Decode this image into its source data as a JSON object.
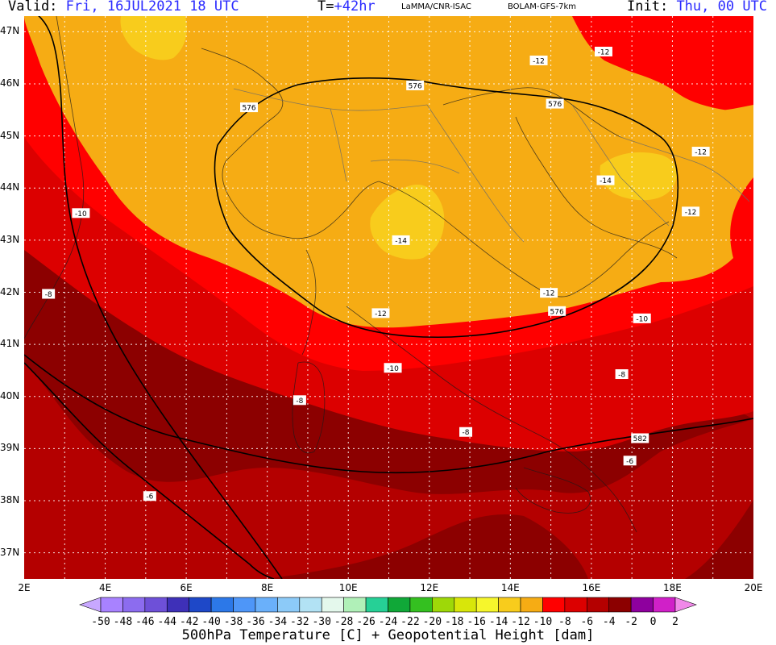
{
  "header": {
    "valid_key": "Valid:",
    "valid_value": "Fri, 16JUL2021   18 UTC",
    "t_key": "T=",
    "t_value": "+42hr",
    "source": "LaMMA/CNR-ISAC",
    "model": "BOLAM-GFS-7km",
    "init_key": "Init:",
    "init_value": "Thu, 00 UTC"
  },
  "map": {
    "lat_labels": [
      "47N",
      "46N",
      "45N",
      "44N",
      "43N",
      "42N",
      "41N",
      "40N",
      "39N",
      "38N",
      "37N"
    ],
    "lon_labels": [
      "2E",
      "4E",
      "6E",
      "8E",
      "10E",
      "12E",
      "14E",
      "16E",
      "18E",
      "20E"
    ],
    "extent": {
      "lon_min": 2,
      "lon_max": 20,
      "lat_min": 36.5,
      "lat_max": 47.3
    },
    "temperature_labels": [
      {
        "text": "-10",
        "lon": 3.4,
        "lat": 43.52
      },
      {
        "text": "-8",
        "lon": 2.6,
        "lat": 41.97
      },
      {
        "text": "-14",
        "lon": 11.3,
        "lat": 43.0
      },
      {
        "text": "-12",
        "lon": 10.8,
        "lat": 41.6
      },
      {
        "text": "-10",
        "lon": 11.1,
        "lat": 40.55
      },
      {
        "text": "-8",
        "lon": 8.8,
        "lat": 39.93
      },
      {
        "text": "-8",
        "lon": 12.9,
        "lat": 39.32
      },
      {
        "text": "-6",
        "lon": 5.1,
        "lat": 38.09
      },
      {
        "text": "-12",
        "lon": 14.95,
        "lat": 41.99
      },
      {
        "text": "-10",
        "lon": 17.25,
        "lat": 41.5
      },
      {
        "text": "-8",
        "lon": 16.75,
        "lat": 40.43
      },
      {
        "text": "-6",
        "lon": 16.95,
        "lat": 38.77
      },
      {
        "text": "-14",
        "lon": 16.35,
        "lat": 44.15
      },
      {
        "text": "-12",
        "lon": 18.7,
        "lat": 44.7
      },
      {
        "text": "-12",
        "lon": 18.45,
        "lat": 43.55
      },
      {
        "text": "-12",
        "lon": 14.7,
        "lat": 46.45
      },
      {
        "text": "-12",
        "lon": 16.3,
        "lat": 46.62
      }
    ],
    "height_labels": [
      {
        "text": "576",
        "lon": 7.55,
        "lat": 45.55
      },
      {
        "text": "576",
        "lon": 11.65,
        "lat": 45.97
      },
      {
        "text": "576",
        "lon": 15.1,
        "lat": 45.62
      },
      {
        "text": "576",
        "lon": 15.15,
        "lat": 41.64
      },
      {
        "text": "582",
        "lon": 17.2,
        "lat": 39.2
      }
    ]
  },
  "colorbar": {
    "labels": [
      "-50",
      "-48",
      "-46",
      "-44",
      "-42",
      "-40",
      "-38",
      "-36",
      "-34",
      "-32",
      "-30",
      "-28",
      "-26",
      "-24",
      "-22",
      "-20",
      "-18",
      "-16",
      "-14",
      "-12",
      "-10",
      "-8",
      "-6",
      "-4",
      "-2",
      "0",
      "2"
    ],
    "colors": [
      "#c8a8ff",
      "#a882ff",
      "#8c6cef",
      "#6e50d8",
      "#3e30b8",
      "#1e48c8",
      "#2c78e8",
      "#4e96f8",
      "#6ab0fa",
      "#8ccaf8",
      "#b2e2f4",
      "#e4f8ec",
      "#b0f0b8",
      "#26d096",
      "#10a838",
      "#34c020",
      "#9ed808",
      "#d8e60a",
      "#f6f62c",
      "#f8cc1c",
      "#f6ac14",
      "#ff0000",
      "#dc0000",
      "#b40000",
      "#8c0000",
      "#8e009e",
      "#d020c8",
      "#f088e8"
    ]
  },
  "footer": "500hPa Temperature [C] + Geopotential Height [dam]"
}
